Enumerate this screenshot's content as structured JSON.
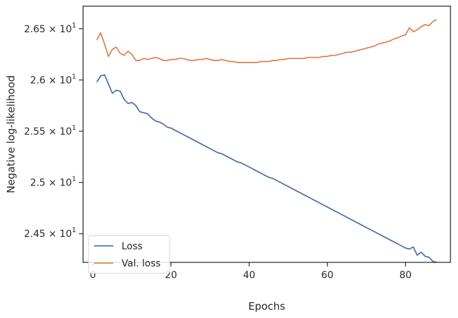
{
  "chart_data": {
    "type": "line",
    "xlabel": "Epochs",
    "ylabel": "Negative log-likelihood",
    "xlim": [
      -2.5,
      91.5
    ],
    "ylim": [
      24.22,
      26.72
    ],
    "x_ticks": [
      0,
      20,
      40,
      60,
      80
    ],
    "x_tick_labels": [
      "0",
      "20",
      "40",
      "60",
      "80"
    ],
    "y_ticks": [
      24.5,
      25.0,
      25.5,
      26.0,
      26.5
    ],
    "y_tick_mantissas": [
      "2.45",
      "2.5",
      "2.55",
      "2.6",
      "2.65"
    ],
    "y_tick_base": "10",
    "y_tick_exponent": "1",
    "grid": false,
    "legend_position": "lower-left",
    "series": [
      {
        "name": "Loss",
        "color": "#4c72b0",
        "x": [
          1,
          2,
          3,
          4,
          5,
          6,
          7,
          8,
          9,
          10,
          11,
          12,
          13,
          14,
          15,
          16,
          17,
          18,
          19,
          20,
          21,
          22,
          23,
          24,
          25,
          26,
          27,
          28,
          29,
          30,
          31,
          32,
          33,
          34,
          35,
          36,
          37,
          38,
          39,
          40,
          41,
          42,
          43,
          44,
          45,
          46,
          47,
          48,
          49,
          50,
          51,
          52,
          53,
          54,
          55,
          56,
          57,
          58,
          59,
          60,
          61,
          62,
          63,
          64,
          65,
          66,
          67,
          68,
          69,
          70,
          71,
          72,
          73,
          74,
          75,
          76,
          77,
          78,
          79,
          80,
          81,
          82,
          83,
          84,
          85,
          86,
          87,
          88
        ],
        "values": [
          25.98,
          26.04,
          26.05,
          25.96,
          25.87,
          25.9,
          25.89,
          25.81,
          25.77,
          25.78,
          25.75,
          25.69,
          25.68,
          25.67,
          25.63,
          25.6,
          25.59,
          25.57,
          25.54,
          25.53,
          25.51,
          25.49,
          25.47,
          25.45,
          25.43,
          25.41,
          25.39,
          25.37,
          25.35,
          25.33,
          25.31,
          25.29,
          25.28,
          25.26,
          25.24,
          25.22,
          25.2,
          25.19,
          25.17,
          25.15,
          25.13,
          25.11,
          25.09,
          25.07,
          25.05,
          25.04,
          25.02,
          25.0,
          24.98,
          24.96,
          24.94,
          24.92,
          24.9,
          24.88,
          24.86,
          24.84,
          24.82,
          24.8,
          24.78,
          24.76,
          24.74,
          24.72,
          24.7,
          24.68,
          24.66,
          24.64,
          24.62,
          24.6,
          24.58,
          24.56,
          24.54,
          24.52,
          24.5,
          24.48,
          24.46,
          24.44,
          24.42,
          24.4,
          24.38,
          24.36,
          24.35,
          24.37,
          24.29,
          24.32,
          24.28,
          24.27,
          24.23,
          24.22
        ]
      },
      {
        "name": "Val. loss",
        "color": "#dd8452",
        "x": [
          1,
          2,
          3,
          4,
          5,
          6,
          7,
          8,
          9,
          10,
          11,
          12,
          13,
          14,
          15,
          16,
          17,
          18,
          19,
          20,
          21,
          22,
          23,
          24,
          25,
          26,
          27,
          28,
          29,
          30,
          31,
          32,
          33,
          34,
          35,
          36,
          37,
          38,
          39,
          40,
          41,
          42,
          43,
          44,
          45,
          46,
          47,
          48,
          49,
          50,
          51,
          52,
          53,
          54,
          55,
          56,
          57,
          58,
          59,
          60,
          61,
          62,
          63,
          64,
          65,
          66,
          67,
          68,
          69,
          70,
          71,
          72,
          73,
          74,
          75,
          76,
          77,
          78,
          79,
          80,
          81,
          82,
          83,
          84,
          85,
          86,
          87,
          88
        ],
        "values": [
          26.39,
          26.46,
          26.35,
          26.23,
          26.3,
          26.32,
          26.26,
          26.24,
          26.28,
          26.25,
          26.19,
          26.19,
          26.21,
          26.2,
          26.21,
          26.22,
          26.21,
          26.19,
          26.19,
          26.2,
          26.2,
          26.21,
          26.21,
          26.2,
          26.19,
          26.19,
          26.2,
          26.2,
          26.21,
          26.2,
          26.19,
          26.19,
          26.2,
          26.19,
          26.18,
          26.18,
          26.17,
          26.17,
          26.17,
          26.17,
          26.17,
          26.17,
          26.18,
          26.18,
          26.18,
          26.19,
          26.19,
          26.2,
          26.2,
          26.21,
          26.21,
          26.21,
          26.21,
          26.21,
          26.22,
          26.22,
          26.22,
          26.22,
          26.23,
          26.23,
          26.24,
          26.24,
          26.25,
          26.26,
          26.27,
          26.27,
          26.28,
          26.29,
          26.3,
          26.31,
          26.32,
          26.33,
          26.35,
          26.36,
          26.37,
          26.38,
          26.4,
          26.41,
          26.43,
          26.44,
          26.51,
          26.47,
          26.49,
          26.52,
          26.54,
          26.53,
          26.57,
          26.59
        ]
      }
    ]
  }
}
